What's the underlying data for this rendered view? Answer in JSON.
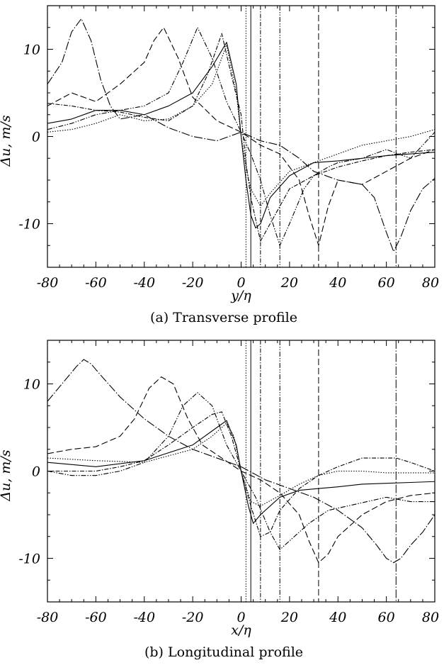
{
  "chart_data": [
    {
      "type": "line",
      "caption": "(a)  Transverse profile",
      "xlabel": "y/η",
      "ylabel": "Δu, m/s",
      "xlim": [
        -80,
        80
      ],
      "ylim": [
        -15,
        15
      ],
      "xticks": [
        -80,
        -60,
        -40,
        -20,
        0,
        20,
        40,
        60,
        80
      ],
      "yticks": [
        -10,
        0,
        10
      ],
      "vlines": [
        2,
        4,
        8,
        16,
        32,
        64
      ],
      "series": [
        {
          "dash": "1.5,2",
          "x": [
            -80,
            -70,
            -60,
            -50,
            -40,
            -30,
            -20,
            -12,
            -6,
            -2,
            0,
            2,
            4,
            8,
            12,
            20,
            30,
            40,
            50,
            60,
            70,
            80
          ],
          "y": [
            0.5,
            0.8,
            1.5,
            2.5,
            1.8,
            2.0,
            3.5,
            6.0,
            10.5,
            5.0,
            0,
            -3.5,
            -6.0,
            -8.0,
            -6.5,
            -4.0,
            -3.0,
            -2.0,
            -1.0,
            -0.5,
            0.0,
            0.8
          ]
        },
        {
          "dash": "none",
          "x": [
            -80,
            -70,
            -60,
            -50,
            -40,
            -30,
            -20,
            -12,
            -6,
            -2,
            0,
            2,
            4,
            6,
            8,
            12,
            20,
            30,
            40,
            50,
            60,
            70,
            80
          ],
          "y": [
            1.5,
            2.0,
            3.0,
            3.0,
            2.5,
            3.5,
            5.0,
            8.0,
            10.8,
            6.0,
            0,
            -5.0,
            -9.0,
            -10.5,
            -10.0,
            -7.0,
            -4.5,
            -3.0,
            -2.8,
            -2.5,
            -2.2,
            -2.0,
            -1.8
          ]
        },
        {
          "dash": "6,2,1.5,2",
          "x": [
            -80,
            -70,
            -60,
            -50,
            -40,
            -30,
            -20,
            -14,
            -8,
            -4,
            0,
            2,
            4,
            8,
            12,
            20,
            30,
            40,
            50,
            60,
            70,
            80
          ],
          "y": [
            3.8,
            3.5,
            3.0,
            2.8,
            2.2,
            1.8,
            3.5,
            7.0,
            11.8,
            7.0,
            2.5,
            -3.0,
            -7.0,
            -12.0,
            -10.0,
            -6.0,
            -4.5,
            -3.5,
            -2.8,
            -2.2,
            -1.8,
            -1.5
          ]
        },
        {
          "dash": "7,2,1.5,2,1.5,2",
          "x": [
            -80,
            -70,
            -60,
            -50,
            -40,
            -30,
            -24,
            -18,
            -12,
            -6,
            0,
            4,
            8,
            12,
            16,
            20,
            26,
            30,
            36,
            40,
            50,
            60,
            70,
            80
          ],
          "y": [
            0.8,
            1.5,
            2.5,
            3.0,
            3.5,
            5.0,
            8.5,
            12.5,
            9.0,
            4.0,
            0.5,
            -2.0,
            -5.0,
            -9.0,
            -12.5,
            -10.0,
            -6.0,
            -4.5,
            -3.5,
            -3.0,
            -2.5,
            -1.5,
            -2.5,
            0.5
          ]
        },
        {
          "dash": "9,4",
          "x": [
            -80,
            -70,
            -60,
            -50,
            -40,
            -36,
            -32,
            -26,
            -20,
            -10,
            0,
            8,
            16,
            24,
            28,
            32,
            36,
            40,
            50,
            60,
            70,
            80
          ],
          "y": [
            3.5,
            5.0,
            4.0,
            6.0,
            8.5,
            11.0,
            12.5,
            9.0,
            4.5,
            1.8,
            0.5,
            -1.0,
            -2.0,
            -5.0,
            -9.0,
            -12.5,
            -8.0,
            -5.0,
            -5.5,
            -4.0,
            -2.5,
            -1.5
          ]
        },
        {
          "dash": "12,2.5,1.5,2.5",
          "x": [
            -80,
            -74,
            -70,
            -66,
            -62,
            -58,
            -54,
            -50,
            -40,
            -30,
            -20,
            -10,
            0,
            8,
            16,
            24,
            30,
            40,
            50,
            55,
            60,
            63,
            66,
            70,
            75,
            80
          ],
          "y": [
            6.0,
            8.5,
            12.0,
            13.5,
            11.0,
            6.5,
            3.5,
            2.0,
            2.5,
            1.0,
            0.0,
            -0.5,
            0.5,
            -0.5,
            -1.0,
            -2.5,
            -4.0,
            -5.0,
            -5.5,
            -7.0,
            -11.0,
            -13.2,
            -11.5,
            -8.5,
            -6.0,
            -4.8
          ]
        }
      ]
    },
    {
      "type": "line",
      "caption": "(b)  Longitudinal profile",
      "xlabel": "x/η",
      "ylabel": "Δu, m/s",
      "xlim": [
        -80,
        80
      ],
      "ylim": [
        -15,
        15
      ],
      "xticks": [
        -80,
        -60,
        -40,
        -20,
        0,
        20,
        40,
        60,
        80
      ],
      "yticks": [
        -10,
        0,
        10
      ],
      "vlines": [
        2,
        4,
        8,
        16,
        32,
        64
      ],
      "series": [
        {
          "dash": "1.5,2",
          "x": [
            -80,
            -60,
            -40,
            -20,
            -12,
            -6,
            -3,
            0,
            4,
            8,
            16,
            24,
            32,
            40,
            50,
            60,
            70,
            80
          ],
          "y": [
            1.5,
            1.2,
            1.0,
            2.5,
            4.0,
            5.5,
            4.0,
            0,
            -3.5,
            -4.0,
            -2.8,
            -1.5,
            -0.5,
            0.0,
            0.0,
            -0.2,
            -0.2,
            -0.2
          ]
        },
        {
          "dash": "none",
          "x": [
            -80,
            -60,
            -40,
            -20,
            -10,
            -6,
            -2,
            0,
            3,
            5,
            8,
            16,
            24,
            32,
            40,
            50,
            60,
            70,
            80
          ],
          "y": [
            1.0,
            0.5,
            1.2,
            3.0,
            5.0,
            5.8,
            3.0,
            0,
            -4.0,
            -6.0,
            -5.0,
            -3.0,
            -2.2,
            -2.0,
            -1.8,
            -1.5,
            -1.4,
            -1.3,
            -1.2
          ]
        },
        {
          "dash": "6,2,1.5,2",
          "x": [
            -80,
            -70,
            -60,
            -50,
            -40,
            -30,
            -20,
            -12,
            -8,
            -4,
            0,
            4,
            8,
            12,
            16,
            24,
            32,
            40,
            50,
            60,
            64,
            70,
            80
          ],
          "y": [
            0.0,
            0.0,
            0.0,
            0.5,
            1.2,
            3.0,
            5.0,
            6.5,
            6.8,
            4.0,
            0,
            -4.0,
            -7.5,
            -7.0,
            -4.5,
            -2.0,
            -0.5,
            0.5,
            1.5,
            1.5,
            1.5,
            1.0,
            0.0
          ]
        },
        {
          "dash": "7,2,1.5,2,1.5,2",
          "x": [
            -80,
            -70,
            -60,
            -50,
            -40,
            -30,
            -24,
            -18,
            -12,
            -6,
            0,
            6,
            12,
            16,
            20,
            28,
            36,
            44,
            52,
            60,
            70,
            80
          ],
          "y": [
            0.0,
            -0.5,
            -0.5,
            0.0,
            1.0,
            4.0,
            7.5,
            9.0,
            7.5,
            3.0,
            0,
            -3.0,
            -7.0,
            -9.0,
            -8.0,
            -6.0,
            -4.5,
            -4.0,
            -3.5,
            -3.0,
            -3.5,
            -3.5
          ]
        },
        {
          "dash": "9,4",
          "x": [
            -80,
            -70,
            -60,
            -50,
            -44,
            -38,
            -33,
            -28,
            -22,
            -16,
            -8,
            0,
            8,
            16,
            24,
            28,
            32,
            36,
            40,
            50,
            60,
            70,
            80
          ],
          "y": [
            2.0,
            2.5,
            2.8,
            4.0,
            6.0,
            9.5,
            10.8,
            10.0,
            6.0,
            3.0,
            1.5,
            0,
            -1.0,
            -2.5,
            -5.0,
            -8.0,
            -10.5,
            -9.5,
            -7.5,
            -5.0,
            -3.5,
            -2.8,
            -2.5
          ]
        },
        {
          "dash": "12,2.5,1.5,2.5",
          "x": [
            -80,
            -74,
            -68,
            -65,
            -62,
            -58,
            -50,
            -40,
            -30,
            -20,
            -10,
            0,
            10,
            20,
            30,
            40,
            50,
            56,
            60,
            63,
            66,
            70,
            75,
            80
          ],
          "y": [
            8.0,
            10.0,
            12.0,
            12.8,
            12.3,
            11.0,
            8.5,
            6.0,
            4.0,
            2.5,
            1.5,
            0.5,
            -1.0,
            -2.0,
            -3.0,
            -4.5,
            -6.5,
            -8.5,
            -10.0,
            -10.5,
            -10.0,
            -8.5,
            -7.0,
            -5.0
          ]
        }
      ]
    }
  ]
}
